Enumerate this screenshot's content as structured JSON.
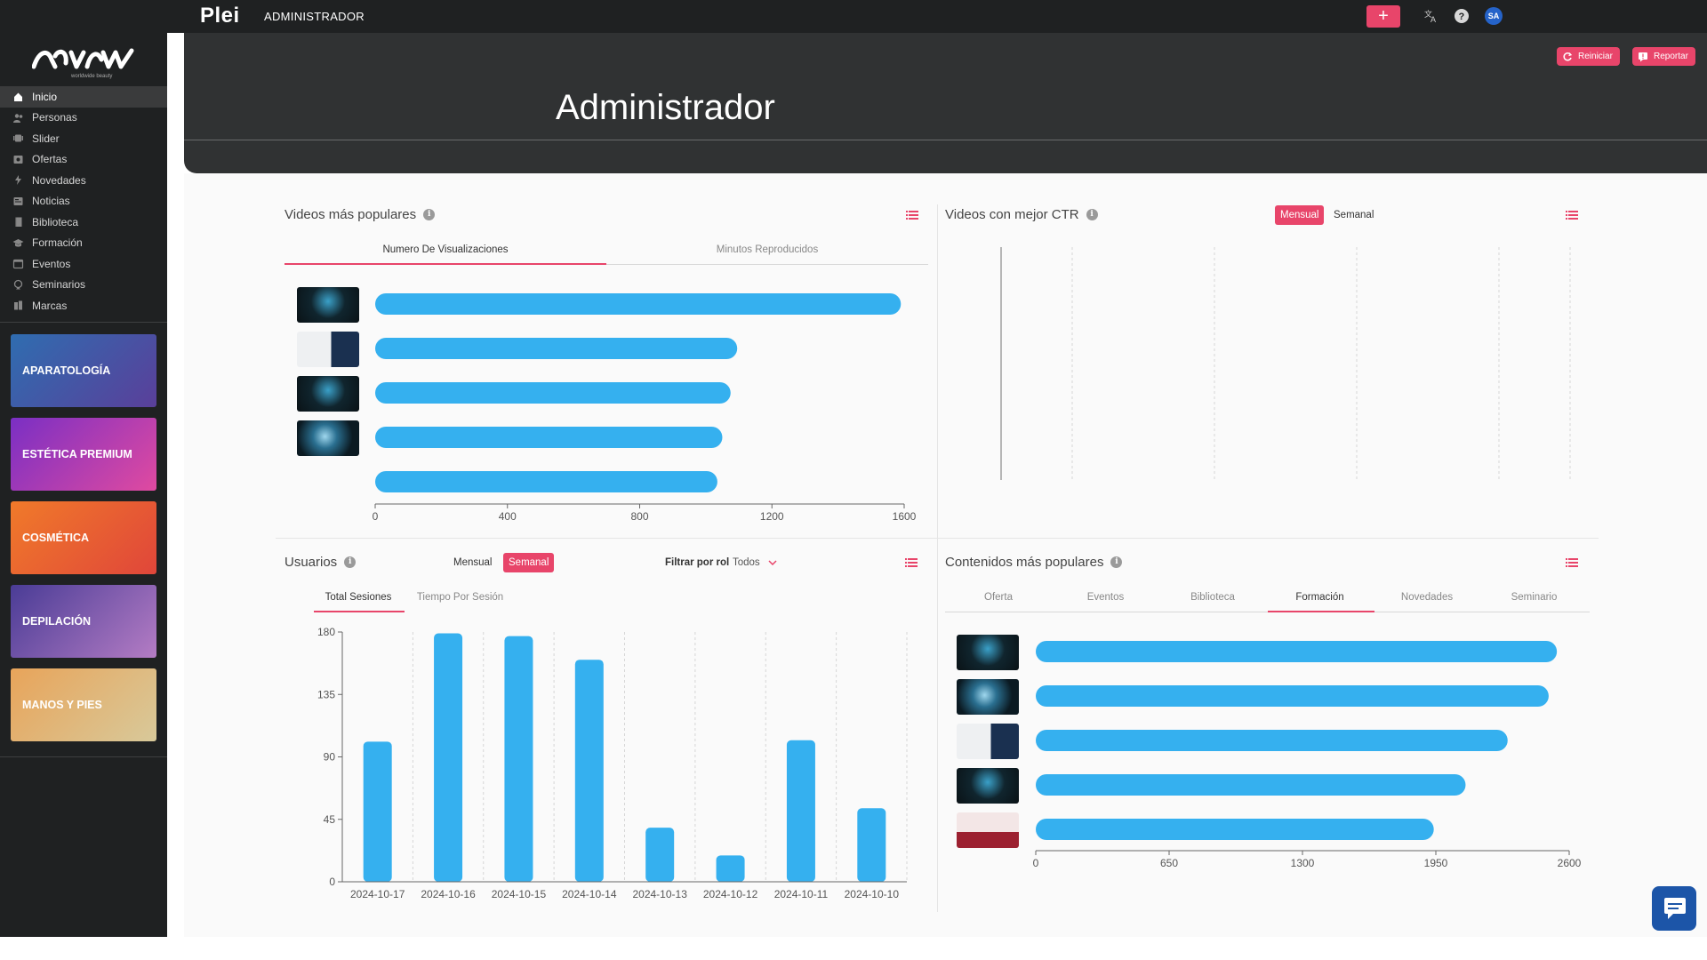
{
  "topbar": {
    "brand": "Plei",
    "title": "ADMINISTRADOR",
    "plus_label": "+",
    "icons": [
      "translate-icon",
      "help-icon"
    ],
    "avatar_initials": "SA"
  },
  "sidebar": {
    "logo_text": "worldwide beauty",
    "items": [
      {
        "label": "Inicio",
        "icon": "home-icon",
        "active": true
      },
      {
        "label": "Personas",
        "icon": "people-icon"
      },
      {
        "label": "Slider",
        "icon": "slider-icon"
      },
      {
        "label": "Ofertas",
        "icon": "offers-icon"
      },
      {
        "label": "Novedades",
        "icon": "bolt-icon"
      },
      {
        "label": "Noticias",
        "icon": "news-icon"
      },
      {
        "label": "Biblioteca",
        "icon": "book-icon"
      },
      {
        "label": "Formación",
        "icon": "graduation-icon"
      },
      {
        "label": "Eventos",
        "icon": "calendar-icon"
      },
      {
        "label": "Seminarios",
        "icon": "seminar-icon"
      },
      {
        "label": "Marcas",
        "icon": "brand-icon"
      }
    ],
    "categories": [
      {
        "label": "APARATOLOGÍA",
        "colors": [
          "#2f6db0",
          "#5a3f9a"
        ]
      },
      {
        "label": "ESTÉTICA PREMIUM",
        "colors": [
          "#7a2fc4",
          "#e04aa0"
        ]
      },
      {
        "label": "COSMÉTICA",
        "colors": [
          "#f07a2a",
          "#e0463a"
        ]
      },
      {
        "label": "DEPILACIÓN",
        "colors": [
          "#4a3c96",
          "#b47cc4"
        ]
      },
      {
        "label": "MANOS Y PIES",
        "colors": [
          "#e8a45a",
          "#d8c99a"
        ]
      }
    ]
  },
  "header": {
    "title": "Administrador",
    "buttons": {
      "restart": "Reiniciar",
      "report": "Reportar"
    }
  },
  "panels": {
    "popular_videos": {
      "title": "Videos más populares",
      "tabs": [
        "Numero De Visualizaciones",
        "Minutos Reproducidos"
      ],
      "active_tab": 0
    },
    "ctr_videos": {
      "title": "Videos con mejor CTR",
      "toggle": [
        "Mensual",
        "Semanal"
      ],
      "active_toggle": 0
    },
    "users": {
      "title": "Usuarios",
      "toggle": [
        "Mensual",
        "Semanal"
      ],
      "active_toggle": 1,
      "filter_label": "Filtrar por rol",
      "filter_value": "Todos",
      "tabs": [
        "Total Sesiones",
        "Tiempo Por Sesión"
      ],
      "active_tab": 0
    },
    "popular_content": {
      "title": "Contenidos más populares",
      "tabs": [
        "Oferta",
        "Eventos",
        "Biblioteca",
        "Formación",
        "Novedades",
        "Seminario"
      ],
      "active_tab": 3
    }
  },
  "chart_data": [
    {
      "type": "bar",
      "orientation": "horizontal",
      "panel": "popular_videos",
      "categories": [
        "",
        "",
        "",
        "",
        ""
      ],
      "values": [
        1590,
        1095,
        1075,
        1050,
        1035
      ],
      "xlim": [
        0,
        1600
      ],
      "xticks": [
        0,
        400,
        800,
        1200,
        1600
      ],
      "color": "#35b0ef",
      "grid": false
    },
    {
      "type": "bar",
      "orientation": "horizontal",
      "panel": "ctr_videos",
      "categories": [],
      "values": [],
      "grid": true
    },
    {
      "type": "bar",
      "panel": "users",
      "categories": [
        "2024-10-17",
        "2024-10-16",
        "2024-10-15",
        "2024-10-14",
        "2024-10-13",
        "2024-10-12",
        "2024-10-11",
        "2024-10-10"
      ],
      "values": [
        101,
        179,
        177,
        160,
        39,
        19,
        102,
        53
      ],
      "ylim": [
        0,
        180
      ],
      "yticks": [
        0,
        45,
        90,
        135,
        180
      ],
      "color": "#35b0ef",
      "grid": true
    },
    {
      "type": "bar",
      "orientation": "horizontal",
      "panel": "popular_content",
      "categories": [
        "",
        "",
        "",
        "",
        ""
      ],
      "values": [
        2540,
        2500,
        2300,
        2095,
        1940
      ],
      "xlim": [
        0,
        2600
      ],
      "xticks": [
        0,
        650,
        1300,
        1950,
        2600
      ],
      "color": "#35b0ef",
      "grid": false
    }
  ]
}
